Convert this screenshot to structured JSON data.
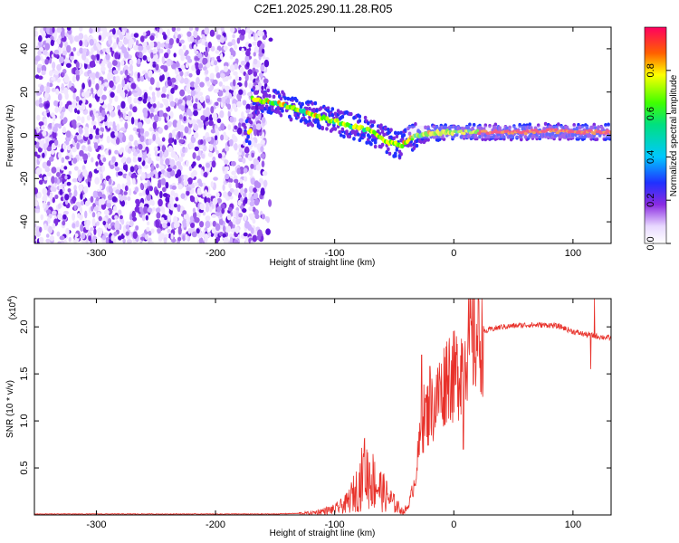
{
  "chart_data": [
    {
      "type": "heatmap",
      "title": "C2E1.2025.290.11.28.R05",
      "xlabel": "Height of straight line (km)",
      "ylabel": "Frequency (Hz)",
      "xlim": [
        -352,
        132
      ],
      "ylim": [
        -50,
        50
      ],
      "xticks": [
        -300,
        -200,
        -100,
        0,
        100
      ],
      "xtick_labels": [
        "-300",
        "-200",
        "-100",
        "0",
        "100"
      ],
      "yticks": [
        -40,
        -20,
        0,
        20,
        40
      ],
      "ytick_labels": [
        "-40",
        "-20",
        "0",
        "20",
        "40"
      ],
      "colorbar": {
        "label": "Normalized spectral amplitude",
        "range": [
          0,
          1
        ],
        "ticks": [
          0.0,
          0.2,
          0.4,
          0.6,
          0.8
        ],
        "tick_labels": [
          "0.0",
          "0.2",
          "0.4",
          "0.6",
          "0.8"
        ]
      },
      "noise_region_x": [
        -352,
        -158
      ],
      "ridge": {
        "x": [
          -170,
          -150,
          -130,
          -110,
          -90,
          -70,
          -55,
          -45,
          -35,
          -20,
          0,
          20,
          40,
          60,
          80,
          100,
          132
        ],
        "y": [
          17,
          15,
          12,
          8,
          5,
          2,
          -3,
          -5,
          -1,
          1,
          1.5,
          1.5,
          1.5,
          1.5,
          2,
          1.5,
          1.5
        ]
      }
    },
    {
      "type": "line",
      "xlabel": "Height of straight line (km)",
      "ylabel": "SNR (10 * v/v)",
      "multiplier_label": "(x10",
      "multiplier_exp": "4",
      "xlim": [
        -352,
        132
      ],
      "ylim": [
        0,
        2.3
      ],
      "xticks": [
        -300,
        -200,
        -100,
        0,
        100
      ],
      "xtick_labels": [
        "-300",
        "-200",
        "-100",
        "0",
        "100"
      ],
      "yticks": [
        0.5,
        1.0,
        1.5,
        2.0
      ],
      "ytick_labels": [
        "0.5",
        "1.0",
        "1.5",
        "2.0"
      ],
      "color": "#e8312a",
      "envelope": {
        "x": [
          -352,
          -150,
          -120,
          -100,
          -90,
          -80,
          -75,
          -70,
          -60,
          -50,
          -42,
          -38,
          -33,
          -28,
          -25,
          -20,
          -15,
          -10,
          -5,
          0,
          5,
          10,
          20,
          30,
          40,
          60,
          80,
          90,
          100,
          110,
          120,
          132
        ],
        "y": [
          0.01,
          0.01,
          0.02,
          0.06,
          0.12,
          0.3,
          0.45,
          0.4,
          0.25,
          0.12,
          0.03,
          0.1,
          0.35,
          0.8,
          1.05,
          1.1,
          1.2,
          1.3,
          1.55,
          1.45,
          1.55,
          1.8,
          1.9,
          1.97,
          2.0,
          2.02,
          2.02,
          2.0,
          1.95,
          1.92,
          1.9,
          1.88
        ]
      },
      "spikes": [
        {
          "x": -75,
          "y": 0.8
        },
        {
          "x": -27,
          "y": 1.7
        },
        {
          "x": -20,
          "y": 1.58
        },
        {
          "x": -12,
          "y": 1.62
        },
        {
          "x": 8,
          "y": 0.7
        },
        {
          "x": 118,
          "y": 2.3
        },
        {
          "x": 115,
          "y": 1.55
        }
      ]
    }
  ]
}
